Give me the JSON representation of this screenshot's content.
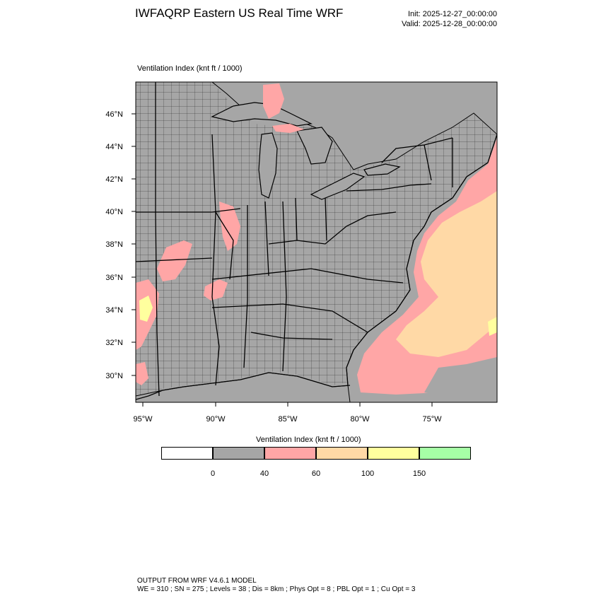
{
  "header": {
    "title": "IWFAQRP Eastern US Real Time WRF",
    "init": "Init: 2025-12-27_00:00:00",
    "valid": "Valid: 2025-12-28_00:00:00"
  },
  "map": {
    "field_label": "Ventilation Index   (knt ft / 1000)",
    "lat_labels": [
      "46°N",
      "44°N",
      "42°N",
      "40°N",
      "38°N",
      "36°N",
      "34°N",
      "32°N",
      "30°N"
    ],
    "lon_labels": [
      "95°W",
      "90°W",
      "85°W",
      "80°W",
      "75°W"
    ],
    "colors": {
      "land_background": "#a6a6a6",
      "ocean_low": "#a6a6a6",
      "pink_40_60": "#ffa6a6",
      "tan_60_100": "#ffd9a6",
      "yellow_100_150": "#ffff9e",
      "green_150_plus": "#a6ffa6"
    }
  },
  "legend": {
    "title": "Ventilation Index  (knt ft / 1000)",
    "bins": [
      {
        "label": "below 0",
        "color": "#ffffff"
      },
      {
        "label": "0-40",
        "color": "#a6a6a6"
      },
      {
        "label": "40-60",
        "color": "#ffa6a6"
      },
      {
        "label": "60-100",
        "color": "#ffd9a6"
      },
      {
        "label": "100-150",
        "color": "#ffff9e"
      },
      {
        "label": "150+",
        "color": "#a6ffa6"
      }
    ],
    "ticks": [
      "0",
      "40",
      "60",
      "100",
      "150"
    ]
  },
  "footer": {
    "line1": "OUTPUT FROM WRF V4.6.1 MODEL",
    "line2": "WE = 310 ; SN = 275 ; Levels = 38 ; Dis = 8km ; Phys Opt = 8 ; PBL Opt = 1 ; Cu Opt = 3"
  }
}
